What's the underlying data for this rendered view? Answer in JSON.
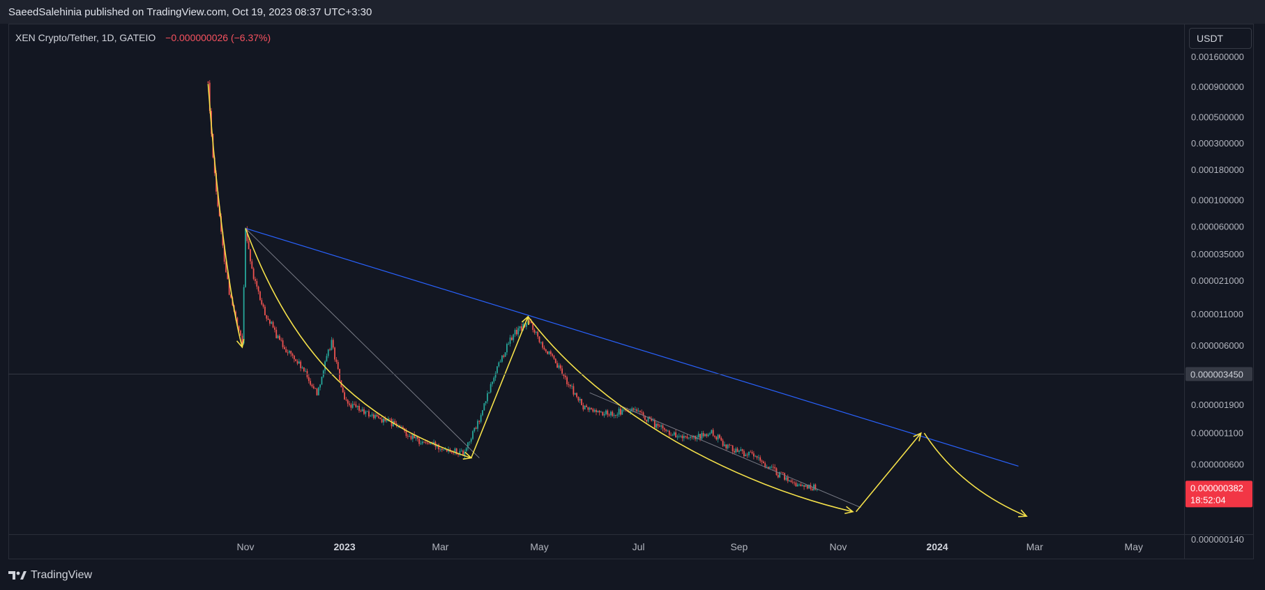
{
  "header": {
    "publisher_line": "SaeedSalehinia published on TradingView.com, Oct 19, 2023 08:37 UTC+3:30"
  },
  "legend": {
    "symbol": "XEN Crypto/Tether, 1D, GATEIO",
    "change": "−0.000000026 (−6.37%)"
  },
  "currency_button": "USDT",
  "footer": {
    "brand": "TradingView"
  },
  "colors": {
    "background": "#131722",
    "up_candle": "#26a69a",
    "down_candle": "#ef5350",
    "yellow_drawing": "#f5e14a",
    "blue_trendline": "#2962ff",
    "gray_trendline": "#787b86",
    "price_badge": "#f23645"
  },
  "chart_data": {
    "type": "line",
    "scale": "log",
    "symbol": "XEN Crypto/Tether",
    "interval": "1D",
    "exchange": "GATEIO",
    "x_ticks": [
      {
        "label": "Nov",
        "date": "2022-11-01",
        "bold": false
      },
      {
        "label": "2023",
        "date": "2023-01-01",
        "bold": true
      },
      {
        "label": "Mar",
        "date": "2023-03-01",
        "bold": false
      },
      {
        "label": "May",
        "date": "2023-05-01",
        "bold": false
      },
      {
        "label": "Jul",
        "date": "2023-07-01",
        "bold": false
      },
      {
        "label": "Sep",
        "date": "2023-09-01",
        "bold": false
      },
      {
        "label": "Nov",
        "date": "2023-11-01",
        "bold": false
      },
      {
        "label": "2024",
        "date": "2024-01-01",
        "bold": true
      },
      {
        "label": "Mar",
        "date": "2024-03-01",
        "bold": false
      },
      {
        "label": "May",
        "date": "2024-05-01",
        "bold": false
      }
    ],
    "y_ticks": [
      "0.001600000",
      "0.000900000",
      "0.000500000",
      "0.000300000",
      "0.000180000",
      "0.000100000",
      "0.000060000",
      "0.000035000",
      "0.000021000",
      "0.000011000",
      "0.000006000",
      "0.000001900",
      "0.000001100",
      "0.000000600",
      "0.000000140"
    ],
    "y_tick_values": [
      0.0016,
      0.0009,
      0.0005,
      0.0003,
      0.00018,
      0.0001,
      6e-05,
      3.5e-05,
      2.1e-05,
      1.1e-05,
      6e-06,
      1.9e-06,
      1.1e-06,
      6e-07,
      1.4e-07
    ],
    "crosshair_label": "0.000003450",
    "crosshair_value": 3.45e-06,
    "last_price_label": "0.000000382",
    "last_price_value": 3.82e-07,
    "countdown": "18:52:04",
    "price_path": [
      [
        "2022-10-09",
        0.00095
      ],
      [
        "2022-10-11",
        0.00035
      ],
      [
        "2022-10-14",
        0.00012
      ],
      [
        "2022-10-18",
        4e-05
      ],
      [
        "2022-10-22",
        1.7e-05
      ],
      [
        "2022-10-27",
        8.5e-06
      ],
      [
        "2022-10-30",
        6.2e-06
      ],
      [
        "2022-11-01",
        6e-05
      ],
      [
        "2022-11-05",
        2.5e-05
      ],
      [
        "2022-11-12",
        1.2e-05
      ],
      [
        "2022-11-22",
        6.5e-06
      ],
      [
        "2022-12-05",
        4e-06
      ],
      [
        "2022-12-15",
        2.4e-06
      ],
      [
        "2022-12-24",
        6.5e-06
      ],
      [
        "2023-01-01",
        2e-06
      ],
      [
        "2023-01-15",
        1.6e-06
      ],
      [
        "2023-02-01",
        1.3e-06
      ],
      [
        "2023-02-15",
        9.5e-07
      ],
      [
        "2023-03-01",
        8.5e-07
      ],
      [
        "2023-03-15",
        7.5e-07
      ],
      [
        "2023-03-25",
        1.4e-06
      ],
      [
        "2023-04-05",
        4e-06
      ],
      [
        "2023-04-15",
        7.5e-06
      ],
      [
        "2023-04-25",
        9.5e-06
      ],
      [
        "2023-05-05",
        5.5e-06
      ],
      [
        "2023-05-15",
        3.5e-06
      ],
      [
        "2023-05-28",
        1.8e-06
      ],
      [
        "2023-06-10",
        1.6e-06
      ],
      [
        "2023-06-28",
        1.7e-06
      ],
      [
        "2023-07-15",
        1.2e-06
      ],
      [
        "2023-08-01",
        9.5e-07
      ],
      [
        "2023-08-15",
        1.1e-06
      ],
      [
        "2023-08-25",
        8.5e-07
      ],
      [
        "2023-09-10",
        7e-07
      ],
      [
        "2023-09-25",
        5e-07
      ],
      [
        "2023-10-08",
        4e-07
      ],
      [
        "2023-10-19",
        3.82e-07
      ]
    ],
    "drawings": {
      "blue_trendline": [
        [
          "2022-11-01",
          5.8e-05
        ],
        [
          "2024-02-20",
          5.8e-07
        ]
      ],
      "gray_trendline_1": [
        [
          "2022-11-01",
          5.8e-05
        ],
        [
          "2023-03-25",
          6.8e-07
        ]
      ],
      "gray_trendline_2": [
        [
          "2023-06-01",
          2.4e-06
        ],
        [
          "2023-11-15",
          2.6e-07
        ]
      ],
      "yellow_curve_1": [
        [
          "2022-10-09",
          0.00095
        ],
        [
          "2022-10-15",
          7e-05
        ],
        [
          "2022-10-24",
          1.2e-05
        ],
        [
          "2022-10-30",
          5.8e-06
        ]
      ],
      "yellow_curve_2": [
        [
          "2022-11-01",
          5.8e-05
        ],
        [
          "2022-12-01",
          4.5e-06
        ],
        [
          "2023-01-15",
          1.3e-06
        ],
        [
          "2023-03-20",
          6.8e-07
        ]
      ],
      "yellow_line_up_1": [
        [
          "2023-03-20",
          6.8e-07
        ],
        [
          "2023-04-24",
          1.05e-05
        ]
      ],
      "yellow_curve_3": [
        [
          "2023-04-24",
          1.05e-05
        ],
        [
          "2023-06-10",
          1.5e-06
        ],
        [
          "2023-09-01",
          4e-07
        ],
        [
          "2023-11-10",
          2.4e-07
        ]
      ],
      "yellow_projection_up": [
        [
          "2023-11-12",
          2.4e-07
        ],
        [
          "2023-12-22",
          1.1e-06
        ]
      ],
      "yellow_projection_down": [
        [
          "2023-12-24",
          1.1e-06
        ],
        [
          "2024-01-15",
          3.8e-07
        ],
        [
          "2024-02-25",
          2.2e-07
        ]
      ]
    }
  }
}
